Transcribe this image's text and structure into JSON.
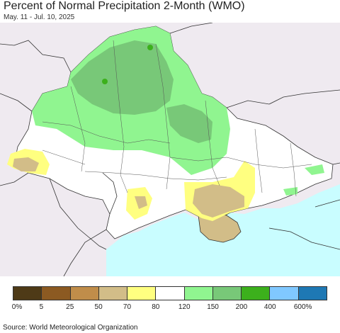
{
  "header": {
    "title": "Percent of Normal Precipitation 2-Month (WMO)",
    "subtitle": "May. 11 - Jul. 10, 2025"
  },
  "legend": {
    "colors": [
      "#4e3a17",
      "#8c5a22",
      "#c08d4a",
      "#d2bd88",
      "#ffff80",
      "#ffffff",
      "#90f590",
      "#78c878",
      "#3cb01c",
      "#80c8ff",
      "#1e78b4"
    ],
    "ticks": [
      "0%",
      "5",
      "25",
      "50",
      "70",
      "80",
      "120",
      "150",
      "200",
      "400",
      "600%"
    ]
  },
  "footer": {
    "source": "Source: World Meteorological Organization"
  },
  "map": {
    "colors": {
      "outside": "#efeaf0",
      "sea": "#c9fdff",
      "land": "#ffffff",
      "border": "#333333"
    }
  }
}
